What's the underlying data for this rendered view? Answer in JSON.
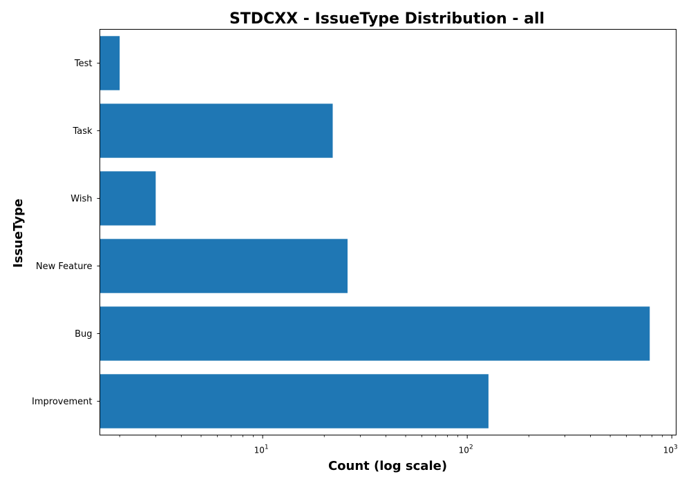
{
  "chart_data": {
    "type": "bar",
    "orientation": "horizontal",
    "title": "STDCXX - IssueType Distribution - all",
    "xlabel": "Count (log scale)",
    "ylabel": "IssueType",
    "x_scale": "log",
    "xlim": [
      1.6,
      1050
    ],
    "x_ticks": [
      {
        "value": 10,
        "base": "10",
        "exp": "1"
      },
      {
        "value": 100,
        "base": "10",
        "exp": "2"
      },
      {
        "value": 1000,
        "base": "10",
        "exp": "3"
      }
    ],
    "categories": [
      "Improvement",
      "Bug",
      "New Feature",
      "Wish",
      "Task",
      "Test"
    ],
    "values": [
      127,
      780,
      26,
      3,
      22,
      2
    ],
    "bar_color": "#1f77b4",
    "grid": false
  }
}
